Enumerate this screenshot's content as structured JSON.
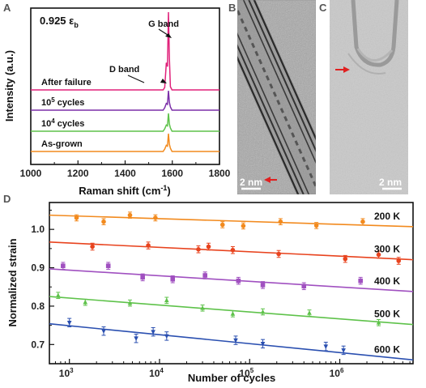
{
  "chart_data": [
    {
      "panel": "A",
      "type": "line",
      "annotation": "0.925 ε",
      "annotation_sub": "b",
      "xlabel": "Raman shift (cm",
      "xlabel_sup": "-1",
      "xlabel_end": ")",
      "ylabel": "Intensity (a.u.)",
      "xlim": [
        1000,
        1800
      ],
      "xticks": [
        "1000",
        "1200",
        "1400",
        "1600",
        "1800"
      ],
      "peak_labels": {
        "g": "G band",
        "d": "D band"
      },
      "g_band_position": 1585,
      "d_band_position": 1580,
      "series": [
        {
          "name": "After failure",
          "color": "#e0217a",
          "baseline": 4,
          "g_peak": 4.2
        },
        {
          "name": "10",
          "name_sup": "5",
          "name_end": " cycles",
          "color": "#7b2fa8",
          "baseline": 3,
          "g_peak": 1.05
        },
        {
          "name": "10",
          "name_sup": "4",
          "name_end": " cycles",
          "color": "#5ec24a",
          "baseline": 2,
          "g_peak": 1.0
        },
        {
          "name": "As-grown",
          "color": "#f28a1e",
          "baseline": 1,
          "g_peak": 1.0
        }
      ]
    },
    {
      "panel": "B",
      "type": "image",
      "scale_bar": "2 nm"
    },
    {
      "panel": "C",
      "type": "image",
      "scale_bar": "2 nm"
    },
    {
      "panel": "D",
      "type": "scatter",
      "xlabel": "Number of cycles",
      "ylabel": "Normalized strain",
      "x_scale": "log",
      "xlim": [
        600,
        6500000
      ],
      "ylim": [
        0.65,
        1.07
      ],
      "xticks": [
        {
          "base": "10",
          "exp": "3"
        },
        {
          "base": "10",
          "exp": "4"
        },
        {
          "base": "10",
          "exp": "5"
        },
        {
          "base": "10",
          "exp": "6"
        }
      ],
      "yticks": [
        "0.7",
        "0.8",
        "0.9",
        "1.0"
      ],
      "series": [
        {
          "name": "200 K",
          "color": "#f28a1e",
          "marker": "circle",
          "fit": [
            [
              600,
              1.037
            ],
            [
              6500000,
              1.007
            ]
          ],
          "points": [
            [
              1200,
              1.03
            ],
            [
              2400,
              1.02
            ],
            [
              4700,
              1.037
            ],
            [
              9000,
              1.03
            ],
            [
              50000,
              1.012
            ],
            [
              85000,
              1.009
            ],
            [
              220000,
              1.02
            ],
            [
              550000,
              1.01
            ],
            [
              1800000,
              1.02
            ]
          ],
          "error": 0.008
        },
        {
          "name": "300 K",
          "color": "#e8431e",
          "marker": "circle",
          "fit": [
            [
              600,
              0.967
            ],
            [
              6500000,
              0.921
            ]
          ],
          "points": [
            [
              1800,
              0.955
            ],
            [
              7500,
              0.958
            ],
            [
              27000,
              0.948
            ],
            [
              35000,
              0.955
            ],
            [
              65000,
              0.946
            ],
            [
              210000,
              0.936
            ],
            [
              1150000,
              0.923
            ],
            [
              2700000,
              0.934
            ],
            [
              4500000,
              0.918
            ]
          ],
          "error": 0.009
        },
        {
          "name": "400 K",
          "color": "#a050c0",
          "marker": "square",
          "fit": [
            [
              600,
              0.897
            ],
            [
              6500000,
              0.838
            ]
          ],
          "points": [
            [
              850,
              0.905
            ],
            [
              2700,
              0.905
            ],
            [
              6500,
              0.875
            ],
            [
              14000,
              0.87
            ],
            [
              32000,
              0.88
            ],
            [
              75000,
              0.866
            ],
            [
              140000,
              0.855
            ],
            [
              400000,
              0.852
            ],
            [
              1700000,
              0.866
            ]
          ],
          "error": 0.009
        },
        {
          "name": "500 K",
          "color": "#5ec24a",
          "marker": "triangle",
          "fit": [
            [
              600,
              0.825
            ],
            [
              6500000,
              0.752
            ]
          ],
          "points": [
            [
              750,
              0.828
            ],
            [
              1500,
              0.81
            ],
            [
              4700,
              0.808
            ],
            [
              12000,
              0.815
            ],
            [
              30000,
              0.795
            ],
            [
              65000,
              0.78
            ],
            [
              140000,
              0.785
            ],
            [
              460000,
              0.782
            ],
            [
              2700000,
              0.757
            ]
          ],
          "error": 0.008
        },
        {
          "name": "600 K",
          "color": "#2a4fb0",
          "marker": "triangle-down",
          "fit": [
            [
              600,
              0.754
            ],
            [
              6500000,
              0.66
            ]
          ],
          "points": [
            [
              1000,
              0.757
            ],
            [
              2400,
              0.735
            ],
            [
              5500,
              0.716
            ],
            [
              8500,
              0.733
            ],
            [
              12000,
              0.722
            ],
            [
              70000,
              0.711
            ],
            [
              140000,
              0.702
            ],
            [
              700000,
              0.695
            ],
            [
              1100000,
              0.685
            ]
          ],
          "error": 0.011
        }
      ]
    }
  ]
}
